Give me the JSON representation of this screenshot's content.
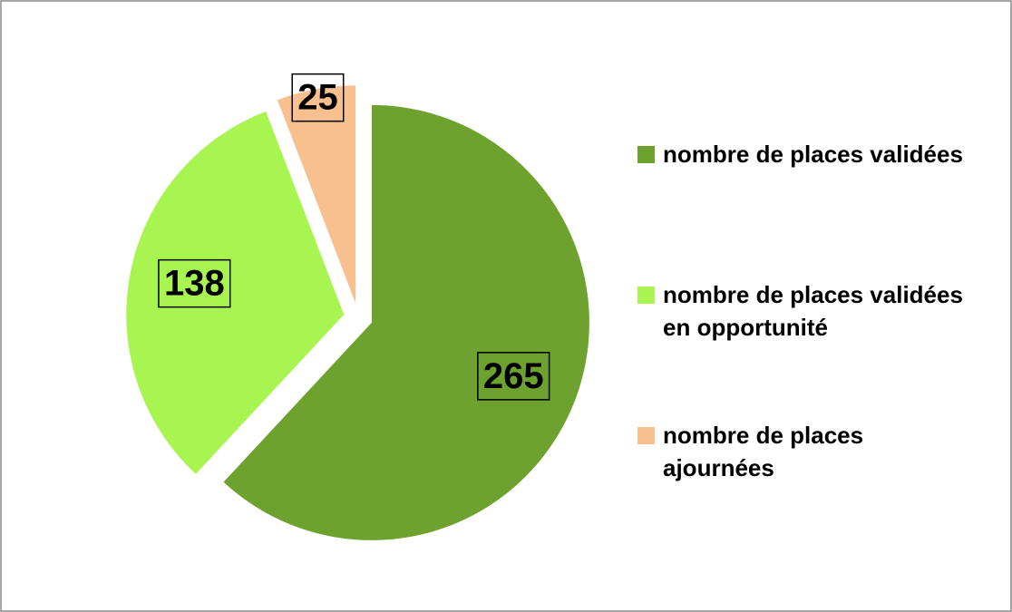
{
  "chart_data": {
    "type": "pie",
    "categories": [
      "nombre de places validées",
      "nombre de places validées en opportunité",
      "nombre de places ajournées"
    ],
    "values": [
      265,
      138,
      25
    ],
    "colors": [
      "#6ea22f",
      "#a8f552",
      "#f9c08f"
    ],
    "legend": "right"
  }
}
